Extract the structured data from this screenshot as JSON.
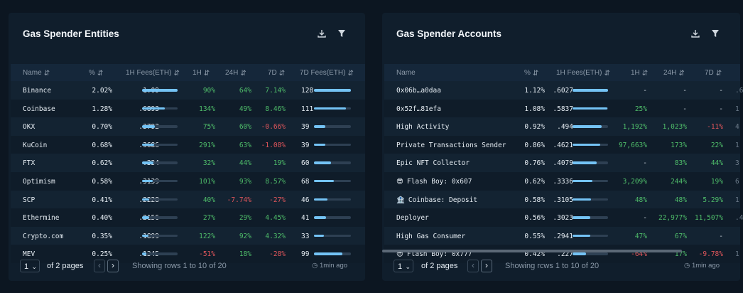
{
  "left": {
    "title": "Gas Spender Entities",
    "columns": [
      "Name",
      "%",
      "1H Fees(ETH)",
      "1H",
      "24H",
      "7D",
      "7D Fees(ETH)"
    ],
    "rows": [
      {
        "name": "Binance",
        "pct": "2.02%",
        "fee1h": "1.09",
        "bar1h": 1.0,
        "h1": "90%",
        "h1c": "pos",
        "h24": "64%",
        "h24c": "pos",
        "d7": "7.14%",
        "d7c": "pos",
        "fee7d": "128",
        "bar7d": 1.0
      },
      {
        "name": "Coinbase",
        "pct": "1.28%",
        "fee1h": ".6893",
        "bar1h": 0.63,
        "h1": "134%",
        "h1c": "pos",
        "h24": "49%",
        "h24c": "pos",
        "d7": "8.46%",
        "d7c": "pos",
        "fee7d": "111",
        "bar7d": 0.87
      },
      {
        "name": "OKX",
        "pct": "0.70%",
        "fee1h": ".3792",
        "bar1h": 0.35,
        "h1": "75%",
        "h1c": "pos",
        "h24": "60%",
        "h24c": "pos",
        "d7": "-0.66%",
        "d7c": "neg",
        "fee7d": "39",
        "bar7d": 0.3
      },
      {
        "name": "KuCoin",
        "pct": "0.68%",
        "fee1h": ".3686",
        "bar1h": 0.34,
        "h1": "291%",
        "h1c": "pos",
        "h24": "63%",
        "h24c": "pos",
        "d7": "-1.08%",
        "d7c": "neg",
        "fee7d": "39",
        "bar7d": 0.3
      },
      {
        "name": "FTX",
        "pct": "0.62%",
        "fee1h": ".334",
        "bar1h": 0.31,
        "h1": "32%",
        "h1c": "pos",
        "h24": "44%",
        "h24c": "pos",
        "d7": "19%",
        "d7c": "pos",
        "fee7d": "60",
        "bar7d": 0.47
      },
      {
        "name": "Optimism",
        "pct": "0.58%",
        "fee1h": ".3139",
        "bar1h": 0.29,
        "h1": "101%",
        "h1c": "pos",
        "h24": "93%",
        "h24c": "pos",
        "d7": "8.57%",
        "d7c": "pos",
        "fee7d": "68",
        "bar7d": 0.53
      },
      {
        "name": "SCP",
        "pct": "0.41%",
        "fee1h": ".2228",
        "bar1h": 0.2,
        "h1": "40%",
        "h1c": "pos",
        "h24": "-7.74%",
        "h24c": "neg",
        "d7": "-27%",
        "d7c": "neg",
        "fee7d": "46",
        "bar7d": 0.36
      },
      {
        "name": "Ethermine",
        "pct": "0.40%",
        "fee1h": ".2156",
        "bar1h": 0.2,
        "h1": "27%",
        "h1c": "pos",
        "h24": "29%",
        "h24c": "pos",
        "d7": "4.45%",
        "d7c": "pos",
        "fee7d": "41",
        "bar7d": 0.32
      },
      {
        "name": "Crypto.com",
        "pct": "0.35%",
        "fee1h": ".1899",
        "bar1h": 0.17,
        "h1": "122%",
        "h1c": "pos",
        "h24": "92%",
        "h24c": "pos",
        "d7": "4.32%",
        "d7c": "pos",
        "fee7d": "33",
        "bar7d": 0.26
      },
      {
        "name": "MEV",
        "pct": "0.25%",
        "fee1h": ".1345",
        "bar1h": 0.12,
        "h1": "-51%",
        "h1c": "neg",
        "h24": "18%",
        "h24c": "pos",
        "d7": "-28%",
        "d7c": "neg",
        "fee7d": "99",
        "bar7d": 0.77
      }
    ],
    "footer": {
      "page": "1",
      "of_pages": "of 2 pages",
      "showing": "Showing rows 1 to 10 of 20",
      "updated": "1min ago"
    }
  },
  "right": {
    "title": "Gas Spender Accounts",
    "columns": [
      "Name",
      "%",
      "1H Fees(ETH)",
      "1H",
      "24H",
      "7D"
    ],
    "rows": [
      {
        "name": "0x06b…a0daa",
        "icon": "",
        "pct": "1.12%",
        "fee1h": ".6027",
        "bar1h": 1.0,
        "h1": "-",
        "h1c": "pos",
        "h24": "-",
        "h24c": "pos",
        "d7": "-",
        "d7c": "pos",
        "extra": ".6"
      },
      {
        "name": "0x52f…81efa",
        "icon": "",
        "pct": "1.08%",
        "fee1h": ".5837",
        "bar1h": 0.97,
        "h1": "25%",
        "h1c": "pos",
        "h24": "-",
        "h24c": "pos",
        "d7": "-",
        "d7c": "pos",
        "extra": "1"
      },
      {
        "name": "High Activity",
        "icon": "",
        "pct": "0.92%",
        "fee1h": ".494",
        "bar1h": 0.82,
        "h1": "1,192%",
        "h1c": "pos",
        "h24": "1,023%",
        "h24c": "pos",
        "d7": "-11%",
        "d7c": "neg",
        "extra": "4"
      },
      {
        "name": "Private Transactions Sender",
        "icon": "",
        "pct": "0.86%",
        "fee1h": ".4621",
        "bar1h": 0.77,
        "h1": "97,663%",
        "h1c": "pos",
        "h24": "173%",
        "h24c": "pos",
        "d7": "22%",
        "d7c": "pos",
        "extra": "1"
      },
      {
        "name": "Epic NFT Collector",
        "icon": "",
        "pct": "0.76%",
        "fee1h": ".4079",
        "bar1h": 0.68,
        "h1": "-",
        "h1c": "pos",
        "h24": "83%",
        "h24c": "pos",
        "d7": "44%",
        "d7c": "pos",
        "extra": "3"
      },
      {
        "name": "Flash Boy: 0x607",
        "icon": "😎",
        "pct": "0.62%",
        "fee1h": ".3336",
        "bar1h": 0.55,
        "h1": "3,209%",
        "h1c": "pos",
        "h24": "244%",
        "h24c": "pos",
        "d7": "19%",
        "d7c": "pos",
        "extra": "6"
      },
      {
        "name": "Coinbase: Deposit",
        "icon": "🏦",
        "pct": "0.58%",
        "fee1h": ".3105",
        "bar1h": 0.52,
        "h1": "48%",
        "h1c": "pos",
        "h24": "48%",
        "h24c": "pos",
        "d7": "5.29%",
        "d7c": "pos",
        "extra": "1"
      },
      {
        "name": "Deployer",
        "icon": "",
        "pct": "0.56%",
        "fee1h": ".3023",
        "bar1h": 0.5,
        "h1": "-",
        "h1c": "neg",
        "h24": "22,977%",
        "h24c": "pos",
        "d7": "11,507%",
        "d7c": "pos",
        "extra": ".4"
      },
      {
        "name": "High Gas Consumer",
        "icon": "",
        "pct": "0.55%",
        "fee1h": ".2941",
        "bar1h": 0.49,
        "h1": "47%",
        "h1c": "pos",
        "h24": "67%",
        "h24c": "pos",
        "d7": "-",
        "d7c": "pos",
        "extra": ""
      },
      {
        "name": "Flash Boy: 0x777",
        "icon": "😎",
        "pct": "0.42%",
        "fee1h": ".227",
        "bar1h": 0.38,
        "h1": "-64%",
        "h1c": "neg",
        "h24": "17%",
        "h24c": "pos",
        "d7": "-9.78%",
        "d7c": "neg",
        "extra": "1"
      }
    ],
    "footer": {
      "page": "1",
      "of_pages": "of 2 pages",
      "showing": "Showing rcws 1 to 10 of 20",
      "updated": "1min ago"
    }
  },
  "colors": {
    "background": "#0c1621",
    "panel": "#101e2c",
    "bar": "#74c3f5",
    "positive": "#4fbd6a",
    "negative": "#e0565b"
  }
}
